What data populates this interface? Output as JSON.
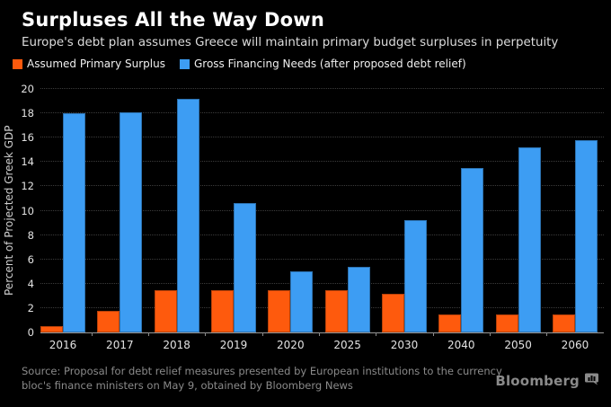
{
  "header": {
    "title": "Surpluses All the Way Down",
    "subtitle": "Europe's debt plan assumes Greece will maintain primary budget surpluses in perpetuity"
  },
  "chart_data": {
    "type": "bar",
    "categories": [
      "2016",
      "2017",
      "2018",
      "2019",
      "2020",
      "2025",
      "2030",
      "2040",
      "2050",
      "2060"
    ],
    "series": [
      {
        "name": "Assumed Primary Surplus",
        "color": "#fe5a0d",
        "values": [
          0.5,
          1.8,
          3.5,
          3.5,
          3.5,
          3.5,
          3.2,
          1.5,
          1.5,
          1.5
        ]
      },
      {
        "name": "Gross Financing Needs (after proposed debt relief)",
        "color": "#3d9df3",
        "values": [
          18.0,
          18.1,
          19.2,
          10.6,
          5.0,
          5.4,
          9.2,
          13.5,
          15.2,
          15.8
        ]
      }
    ],
    "title": "Surpluses All the Way Down",
    "xlabel": "",
    "ylabel": "Percent of Projected Greek GDP",
    "ylim": [
      0,
      20
    ],
    "ytick_step": 2,
    "grid": "horizontal-dotted",
    "legend_position": "top-left",
    "background_color": "#000000",
    "axis_color": "#999999",
    "text_color": "#e2e2e2"
  },
  "footer": {
    "source": "Source: Proposal for debt relief measures presented by European institutions to the currency bloc's finance ministers on May 9, obtained by Bloomberg News",
    "brand": "Bloomberg",
    "brand_icon": "bar-chart-bubble-icon"
  }
}
